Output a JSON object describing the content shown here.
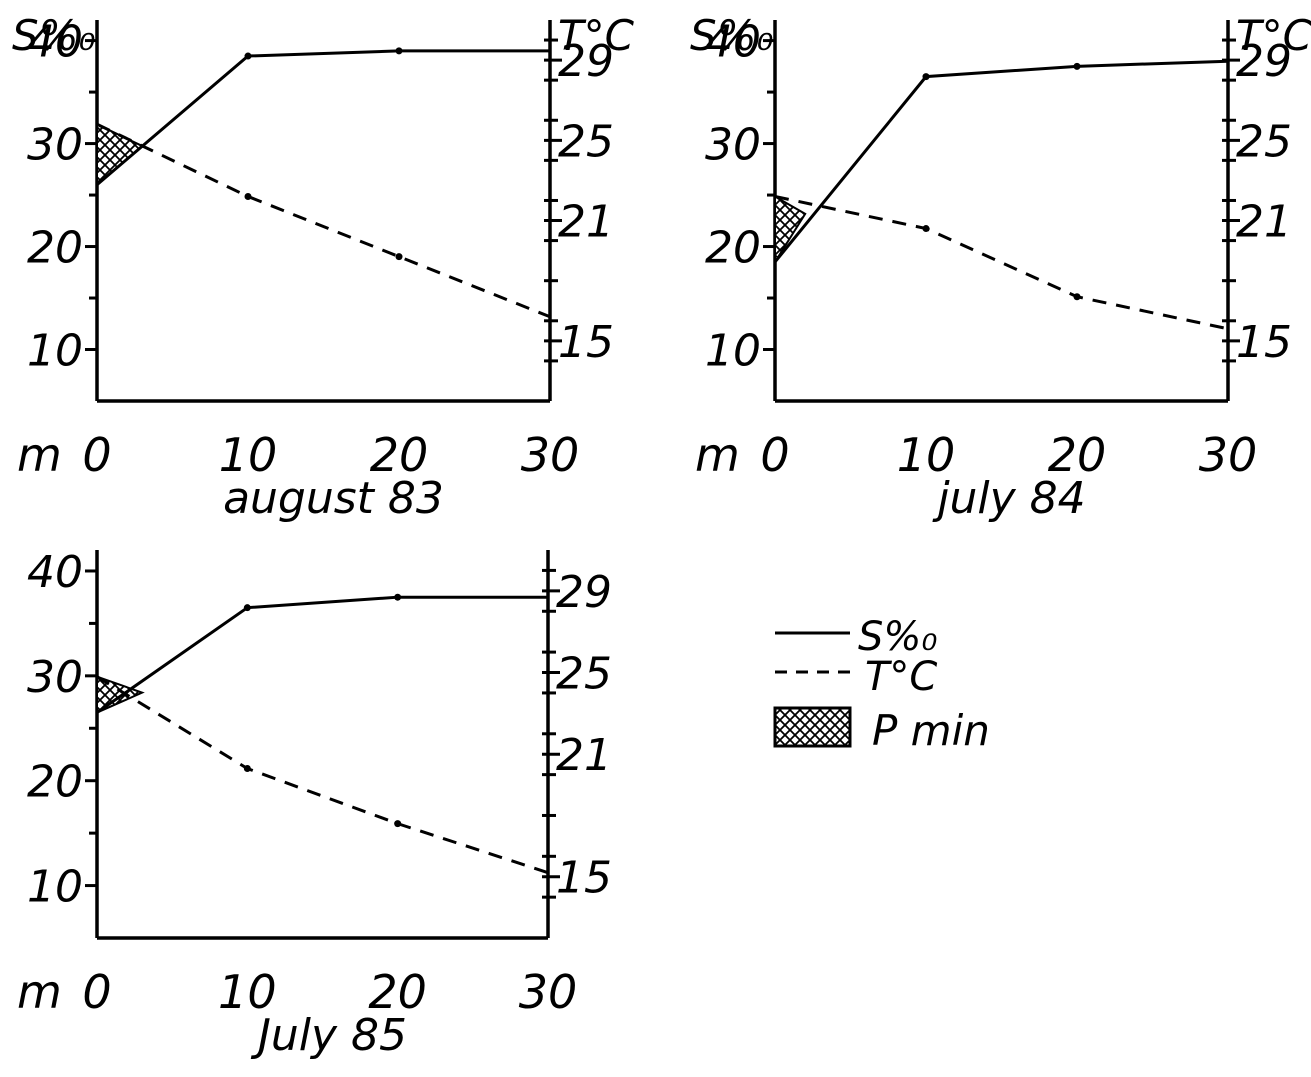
{
  "legend": {
    "salinity_label": "S%₀",
    "temperature_label": "T°C",
    "pmin_label": "P min"
  },
  "chart_data": [
    {
      "type": "line",
      "title": "august  83",
      "xlabel": "m",
      "ylabel_left": "S%₀",
      "ylabel_right": "T°C",
      "x_ticks": [
        "0",
        "10",
        "20",
        "30"
      ],
      "y_left_ticks": [
        "10",
        "20",
        "30",
        "40"
      ],
      "y_right_ticks": [
        "15",
        "21",
        "25",
        "29"
      ],
      "xlim": [
        0,
        30
      ],
      "ylim_left": [
        5,
        42
      ],
      "ylim_right": [
        12,
        31
      ],
      "series": [
        {
          "name": "S%₀",
          "axis": "left",
          "style": "solid",
          "x": [
            0,
            10,
            20,
            30
          ],
          "y": [
            26,
            38.5,
            39,
            39
          ]
        },
        {
          "name": "T°C",
          "axis": "right",
          "style": "dashed",
          "x": [
            0,
            10,
            20,
            30
          ],
          "y": [
            25.8,
            22.2,
            19.2,
            16.2
          ]
        }
      ],
      "pmin": {
        "x": [
          0,
          3
        ]
      }
    },
    {
      "type": "line",
      "title": "july 84",
      "xlabel": "m",
      "ylabel_left": "S%₀",
      "ylabel_right": "T°C",
      "x_ticks": [
        "0",
        "10",
        "20",
        "30"
      ],
      "y_left_ticks": [
        "10",
        "20",
        "30",
        "40"
      ],
      "y_right_ticks": [
        "15",
        "21",
        "25",
        "29"
      ],
      "xlim": [
        0,
        30
      ],
      "ylim_left": [
        5,
        42
      ],
      "ylim_right": [
        12,
        31
      ],
      "series": [
        {
          "name": "S%₀",
          "axis": "left",
          "style": "solid",
          "x": [
            0,
            10,
            20,
            30
          ],
          "y": [
            18.5,
            36.5,
            37.5,
            38
          ]
        },
        {
          "name": "T°C",
          "axis": "right",
          "style": "dashed",
          "x": [
            0,
            10,
            20,
            30
          ],
          "y": [
            22.2,
            20.6,
            17.2,
            15.6
          ]
        }
      ],
      "pmin": {
        "x": [
          0,
          2
        ]
      }
    },
    {
      "type": "line",
      "title": "July  85",
      "xlabel": "m",
      "ylabel_left": "",
      "ylabel_right": "",
      "x_ticks": [
        "0",
        "10",
        "20",
        "30"
      ],
      "y_left_ticks": [
        "10",
        "20",
        "30",
        "40"
      ],
      "y_right_ticks": [
        "15",
        "21",
        "25",
        "29"
      ],
      "xlim": [
        0,
        30
      ],
      "ylim_left": [
        5,
        42
      ],
      "ylim_right": [
        12,
        31
      ],
      "series": [
        {
          "name": "S%₀",
          "axis": "left",
          "style": "solid",
          "x": [
            0,
            10,
            20,
            30
          ],
          "y": [
            26.5,
            36.5,
            37.5,
            37.5
          ]
        },
        {
          "name": "T°C",
          "axis": "right",
          "style": "dashed",
          "x": [
            0,
            10,
            20,
            30
          ],
          "y": [
            24.8,
            20.3,
            17.6,
            15.2
          ]
        }
      ],
      "pmin": {
        "x": [
          0,
          3
        ]
      }
    }
  ]
}
